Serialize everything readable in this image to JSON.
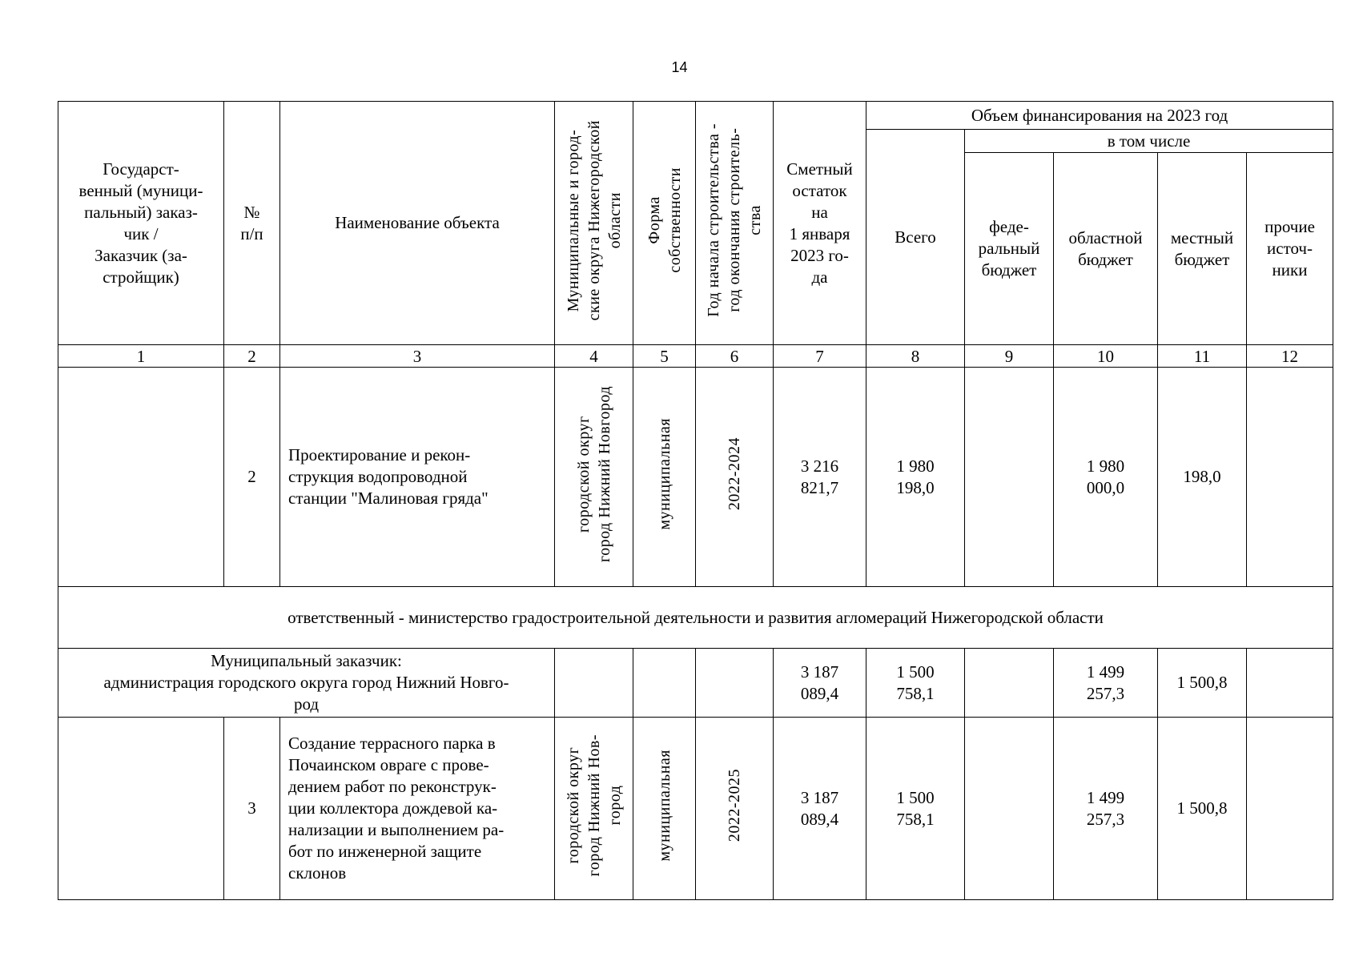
{
  "page_number": "14",
  "header": {
    "customer": "Государст-\nвенный (муници-\nпальный) заказ-\nчик /\nЗаказчик (за-\nстройщик)",
    "number": "№\nп/п",
    "object_name": "Наименование объекта",
    "districts": "Муниципальные и город-\nские округа Нижегородской\nобласти",
    "ownership": "Форма\nсобственности",
    "years": "Год начала строительства -\nгод окончания строитель-\nства",
    "estimate": "Сметный\nостаток\nна\n1 января\n2023 го-\nда",
    "funding": "Объем финансирования на 2023 год",
    "total": "Всего",
    "including": "в том числе",
    "federal": "феде-\nральный\nбюджет",
    "regional": "областной\nбюджет",
    "local": "местный\nбюджет",
    "other": "прочие\nисточ-\nники"
  },
  "column_numbers": [
    "1",
    "2",
    "3",
    "4",
    "5",
    "6",
    "7",
    "8",
    "9",
    "10",
    "11",
    "12"
  ],
  "rows": [
    {
      "customer": "",
      "number": "2",
      "name": "Проектирование и рекон-\nструкция  водопроводной\nстанции  \"Малиновая гряда\"",
      "district": "городской округ\nгород  Нижний Новгород",
      "ownership": "муниципальная",
      "years": "2022-2024",
      "estimate": "3 216\n821,7",
      "total": "1 980\n198,0",
      "federal": "",
      "regional": "1 980\n000,0",
      "local": "198,0",
      "other": ""
    },
    {
      "section": "ответственный - министерство градостроительной деятельности и развития агломераций Нижегородской области"
    },
    {
      "customer": "Муниципальный заказчик:\nадминистрация городского округа город Нижний Новго-\nрод",
      "estimate": "3 187\n089,4",
      "total": "1 500\n758,1",
      "federal": "",
      "regional": "1 499\n257,3",
      "local": "1 500,8",
      "other": ""
    },
    {
      "customer": "",
      "number": "3",
      "name": "Создание террасного парка в\nПочаинском овраге с прове-\nдением работ по реконструк-\nции коллектора дождевой ка-\nнализации и выполнением ра-\nбот по инженерной защите\nсклонов",
      "district": "городской округ\nгород  Нижний Нов-\nгород",
      "ownership": "муниципальная",
      "years": "2022-2025",
      "estimate": "3 187\n089,4",
      "total": "1 500\n758,1",
      "federal": "",
      "regional": "1 499\n257,3",
      "local": "1 500,8",
      "other": ""
    }
  ]
}
